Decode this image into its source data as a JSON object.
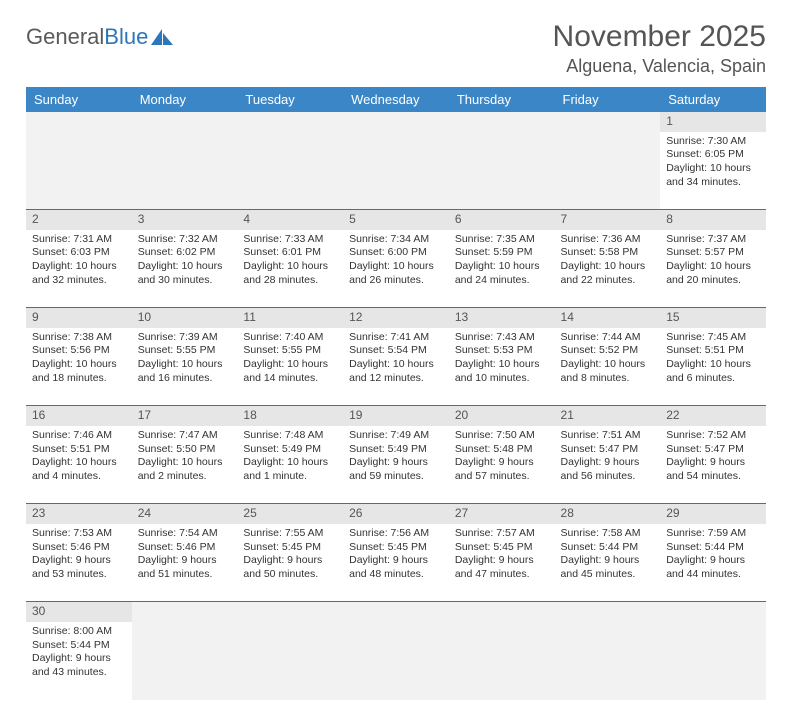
{
  "logo": {
    "text1": "General",
    "text2": "Blue"
  },
  "title": "November 2025",
  "location": "Alguena, Valencia, Spain",
  "colors": {
    "header_bg": "#3b86c7",
    "header_text": "#ffffff",
    "border": "#2d76ba",
    "daynum_bg": "#e6e6e6",
    "empty_bg": "#f2f2f2",
    "text": "#333333",
    "title_text": "#555555"
  },
  "weekdays": [
    "Sunday",
    "Monday",
    "Tuesday",
    "Wednesday",
    "Thursday",
    "Friday",
    "Saturday"
  ],
  "weeks": [
    [
      null,
      null,
      null,
      null,
      null,
      null,
      {
        "n": "1",
        "sunrise": "Sunrise: 7:30 AM",
        "sunset": "Sunset: 6:05 PM",
        "daylight": "Daylight: 10 hours and 34 minutes."
      }
    ],
    [
      {
        "n": "2",
        "sunrise": "Sunrise: 7:31 AM",
        "sunset": "Sunset: 6:03 PM",
        "daylight": "Daylight: 10 hours and 32 minutes."
      },
      {
        "n": "3",
        "sunrise": "Sunrise: 7:32 AM",
        "sunset": "Sunset: 6:02 PM",
        "daylight": "Daylight: 10 hours and 30 minutes."
      },
      {
        "n": "4",
        "sunrise": "Sunrise: 7:33 AM",
        "sunset": "Sunset: 6:01 PM",
        "daylight": "Daylight: 10 hours and 28 minutes."
      },
      {
        "n": "5",
        "sunrise": "Sunrise: 7:34 AM",
        "sunset": "Sunset: 6:00 PM",
        "daylight": "Daylight: 10 hours and 26 minutes."
      },
      {
        "n": "6",
        "sunrise": "Sunrise: 7:35 AM",
        "sunset": "Sunset: 5:59 PM",
        "daylight": "Daylight: 10 hours and 24 minutes."
      },
      {
        "n": "7",
        "sunrise": "Sunrise: 7:36 AM",
        "sunset": "Sunset: 5:58 PM",
        "daylight": "Daylight: 10 hours and 22 minutes."
      },
      {
        "n": "8",
        "sunrise": "Sunrise: 7:37 AM",
        "sunset": "Sunset: 5:57 PM",
        "daylight": "Daylight: 10 hours and 20 minutes."
      }
    ],
    [
      {
        "n": "9",
        "sunrise": "Sunrise: 7:38 AM",
        "sunset": "Sunset: 5:56 PM",
        "daylight": "Daylight: 10 hours and 18 minutes."
      },
      {
        "n": "10",
        "sunrise": "Sunrise: 7:39 AM",
        "sunset": "Sunset: 5:55 PM",
        "daylight": "Daylight: 10 hours and 16 minutes."
      },
      {
        "n": "11",
        "sunrise": "Sunrise: 7:40 AM",
        "sunset": "Sunset: 5:55 PM",
        "daylight": "Daylight: 10 hours and 14 minutes."
      },
      {
        "n": "12",
        "sunrise": "Sunrise: 7:41 AM",
        "sunset": "Sunset: 5:54 PM",
        "daylight": "Daylight: 10 hours and 12 minutes."
      },
      {
        "n": "13",
        "sunrise": "Sunrise: 7:43 AM",
        "sunset": "Sunset: 5:53 PM",
        "daylight": "Daylight: 10 hours and 10 minutes."
      },
      {
        "n": "14",
        "sunrise": "Sunrise: 7:44 AM",
        "sunset": "Sunset: 5:52 PM",
        "daylight": "Daylight: 10 hours and 8 minutes."
      },
      {
        "n": "15",
        "sunrise": "Sunrise: 7:45 AM",
        "sunset": "Sunset: 5:51 PM",
        "daylight": "Daylight: 10 hours and 6 minutes."
      }
    ],
    [
      {
        "n": "16",
        "sunrise": "Sunrise: 7:46 AM",
        "sunset": "Sunset: 5:51 PM",
        "daylight": "Daylight: 10 hours and 4 minutes."
      },
      {
        "n": "17",
        "sunrise": "Sunrise: 7:47 AM",
        "sunset": "Sunset: 5:50 PM",
        "daylight": "Daylight: 10 hours and 2 minutes."
      },
      {
        "n": "18",
        "sunrise": "Sunrise: 7:48 AM",
        "sunset": "Sunset: 5:49 PM",
        "daylight": "Daylight: 10 hours and 1 minute."
      },
      {
        "n": "19",
        "sunrise": "Sunrise: 7:49 AM",
        "sunset": "Sunset: 5:49 PM",
        "daylight": "Daylight: 9 hours and 59 minutes."
      },
      {
        "n": "20",
        "sunrise": "Sunrise: 7:50 AM",
        "sunset": "Sunset: 5:48 PM",
        "daylight": "Daylight: 9 hours and 57 minutes."
      },
      {
        "n": "21",
        "sunrise": "Sunrise: 7:51 AM",
        "sunset": "Sunset: 5:47 PM",
        "daylight": "Daylight: 9 hours and 56 minutes."
      },
      {
        "n": "22",
        "sunrise": "Sunrise: 7:52 AM",
        "sunset": "Sunset: 5:47 PM",
        "daylight": "Daylight: 9 hours and 54 minutes."
      }
    ],
    [
      {
        "n": "23",
        "sunrise": "Sunrise: 7:53 AM",
        "sunset": "Sunset: 5:46 PM",
        "daylight": "Daylight: 9 hours and 53 minutes."
      },
      {
        "n": "24",
        "sunrise": "Sunrise: 7:54 AM",
        "sunset": "Sunset: 5:46 PM",
        "daylight": "Daylight: 9 hours and 51 minutes."
      },
      {
        "n": "25",
        "sunrise": "Sunrise: 7:55 AM",
        "sunset": "Sunset: 5:45 PM",
        "daylight": "Daylight: 9 hours and 50 minutes."
      },
      {
        "n": "26",
        "sunrise": "Sunrise: 7:56 AM",
        "sunset": "Sunset: 5:45 PM",
        "daylight": "Daylight: 9 hours and 48 minutes."
      },
      {
        "n": "27",
        "sunrise": "Sunrise: 7:57 AM",
        "sunset": "Sunset: 5:45 PM",
        "daylight": "Daylight: 9 hours and 47 minutes."
      },
      {
        "n": "28",
        "sunrise": "Sunrise: 7:58 AM",
        "sunset": "Sunset: 5:44 PM",
        "daylight": "Daylight: 9 hours and 45 minutes."
      },
      {
        "n": "29",
        "sunrise": "Sunrise: 7:59 AM",
        "sunset": "Sunset: 5:44 PM",
        "daylight": "Daylight: 9 hours and 44 minutes."
      }
    ],
    [
      {
        "n": "30",
        "sunrise": "Sunrise: 8:00 AM",
        "sunset": "Sunset: 5:44 PM",
        "daylight": "Daylight: 9 hours and 43 minutes."
      },
      null,
      null,
      null,
      null,
      null,
      null
    ]
  ]
}
